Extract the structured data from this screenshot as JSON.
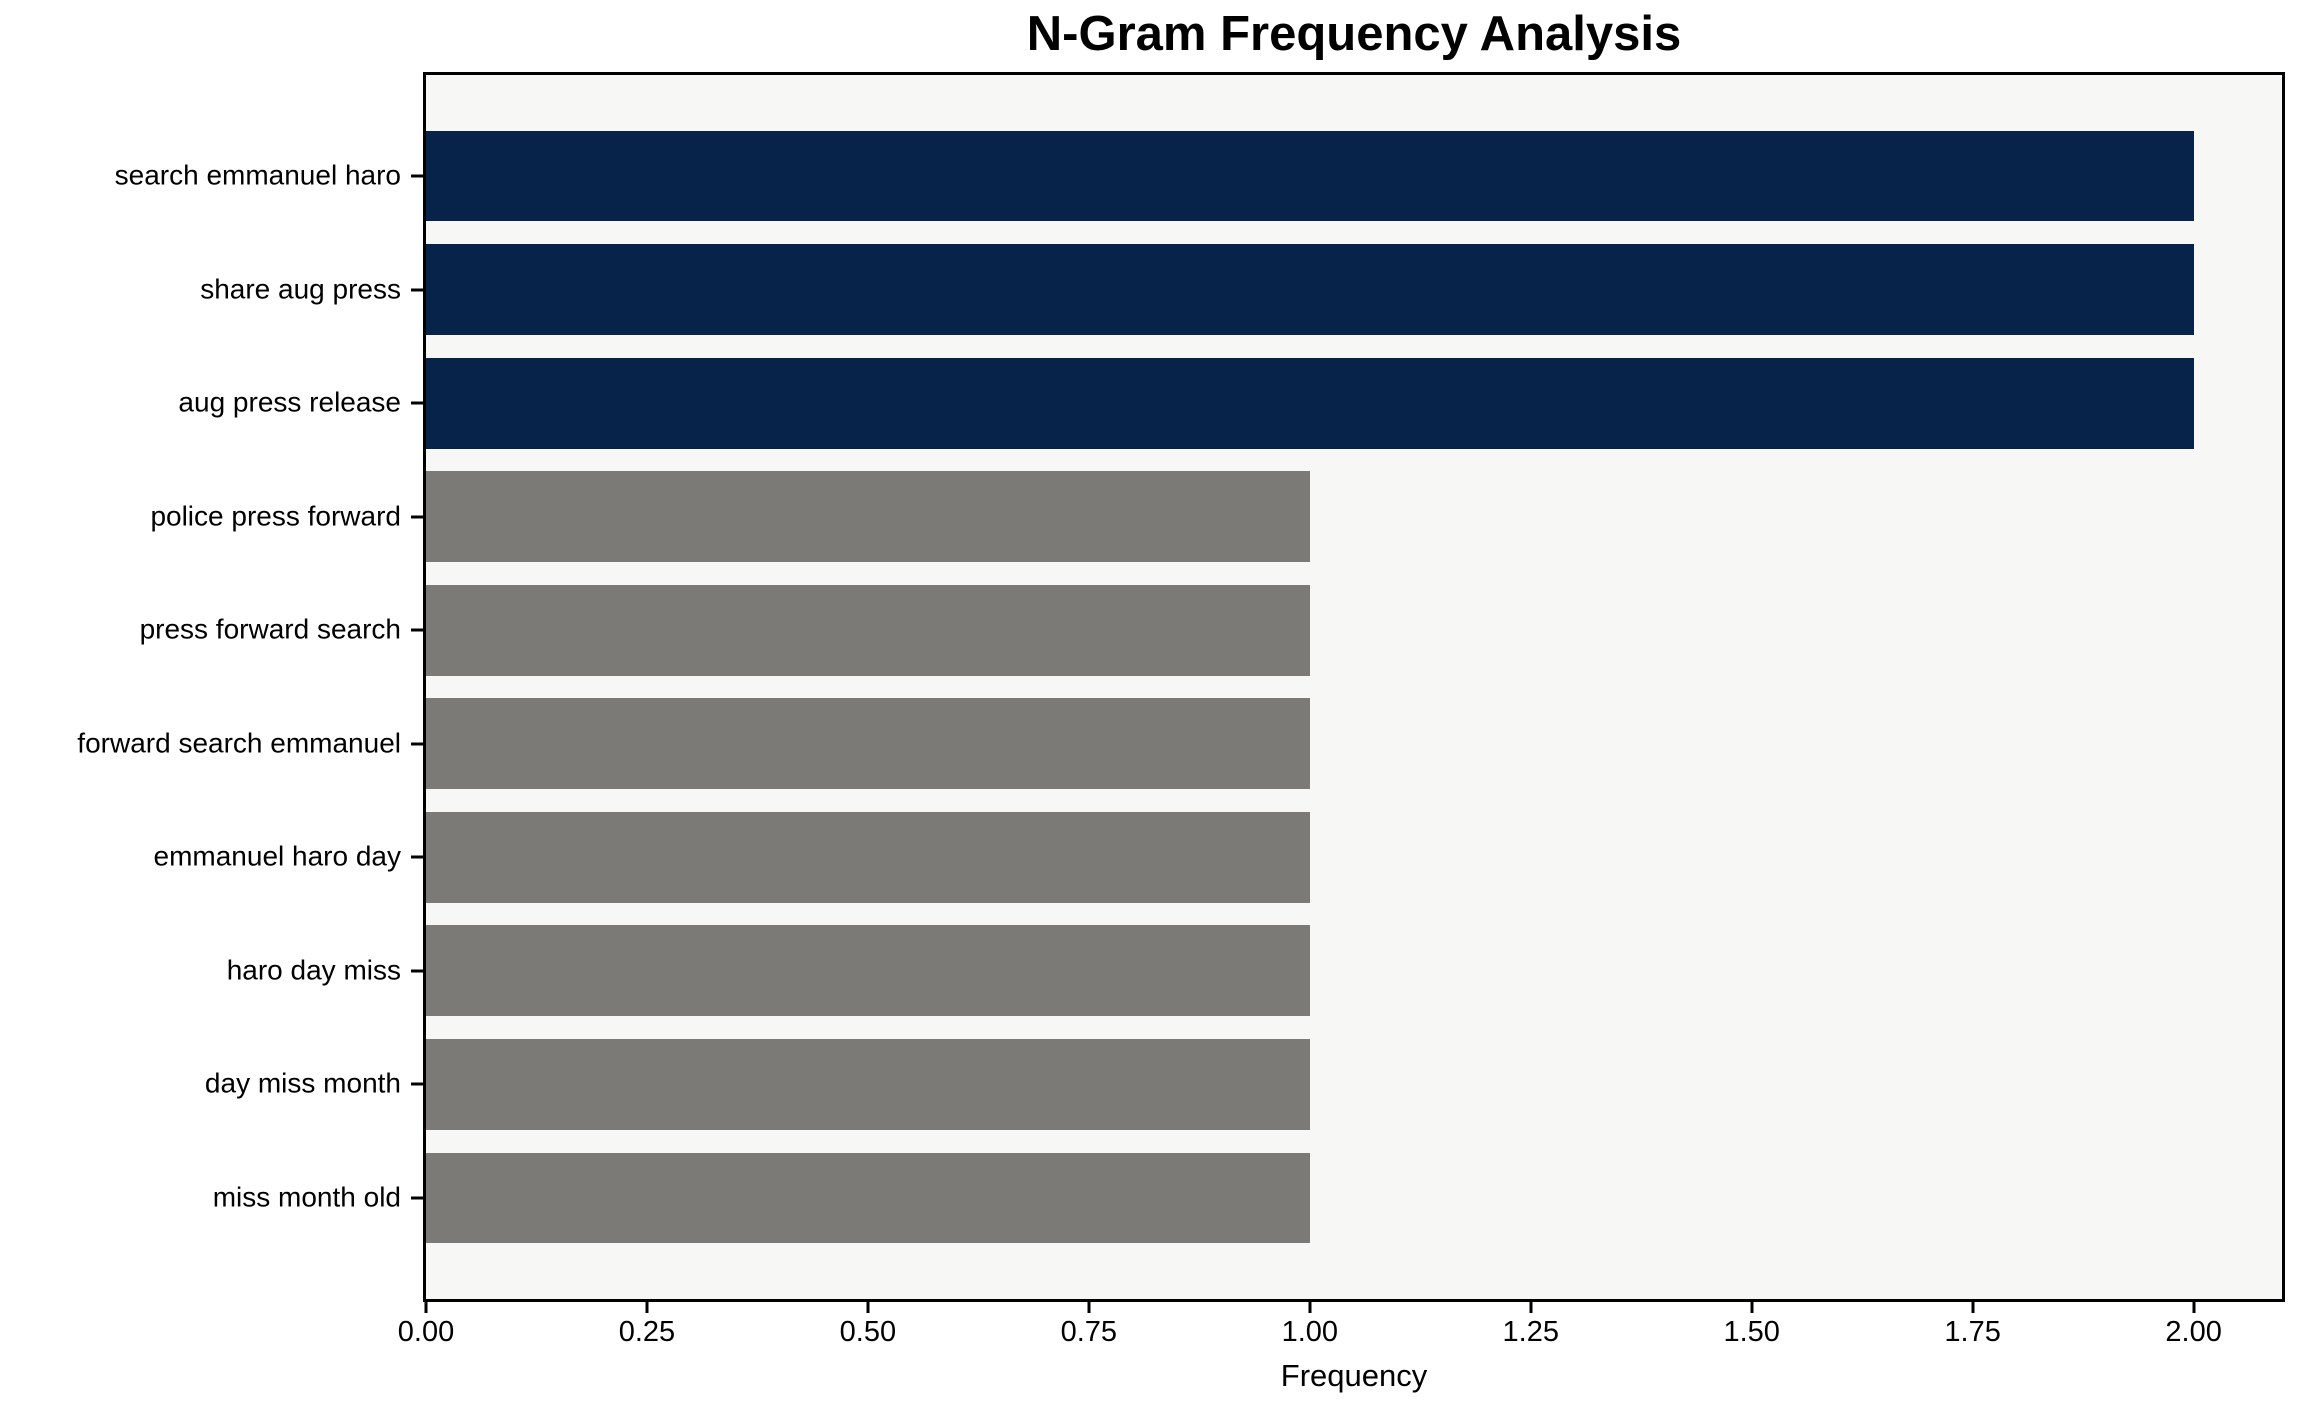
{
  "chart_data": {
    "type": "bar",
    "orientation": "horizontal",
    "title": "N-Gram Frequency Analysis",
    "xlabel": "Frequency",
    "ylabel": "",
    "categories": [
      "search emmanuel haro",
      "share aug press",
      "aug press release",
      "police press forward",
      "press forward search",
      "forward search emmanuel",
      "emmanuel haro day",
      "haro day miss",
      "day miss month",
      "miss month old"
    ],
    "values": [
      2,
      2,
      2,
      1,
      1,
      1,
      1,
      1,
      1,
      1
    ],
    "bar_colors": [
      "#08234a",
      "#08234a",
      "#08234a",
      "#7b7a77",
      "#7b7a77",
      "#7b7a77",
      "#7b7a77",
      "#7b7a77",
      "#7b7a77",
      "#7b7a77"
    ],
    "highlight_color": "#08234a",
    "base_color": "#7b7a77",
    "xlim": [
      0,
      2.1
    ],
    "ylim": [
      -0.89,
      9.89
    ],
    "bar_thickness": 0.8,
    "xticks": {
      "values": [
        0,
        0.25,
        0.5,
        0.75,
        1.0,
        1.25,
        1.5,
        1.75,
        2.0
      ],
      "labels": [
        "0.00",
        "0.25",
        "0.50",
        "0.75",
        "1.00",
        "1.25",
        "1.50",
        "1.75",
        "2.00"
      ]
    },
    "grid": false,
    "legend": "none",
    "plot_background": "#f7f7f6",
    "figure_background": "#ffffff"
  }
}
